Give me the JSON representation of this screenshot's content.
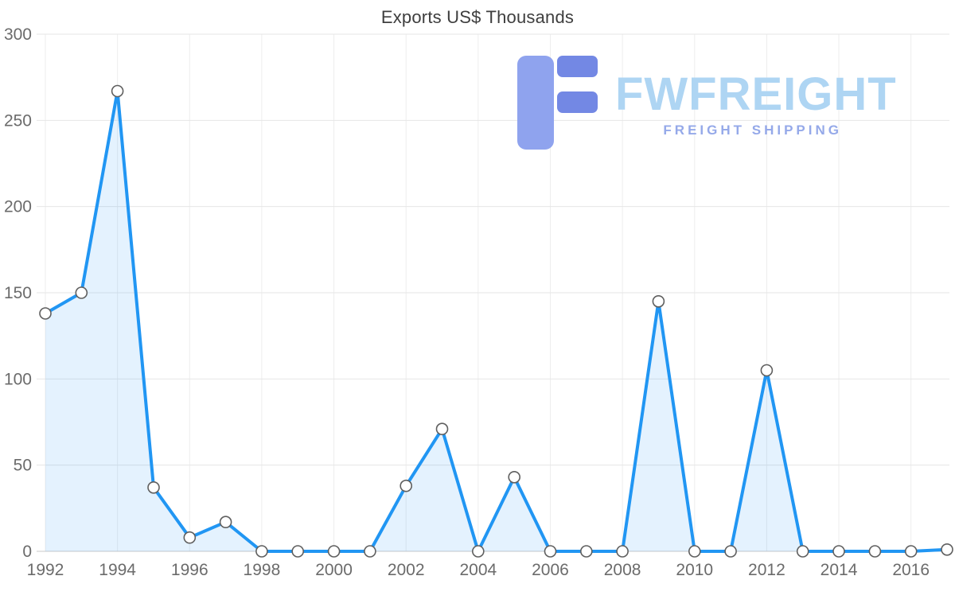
{
  "chart_data": {
    "type": "area",
    "title": "Exports US$ Thousands",
    "xlabel": "",
    "ylabel": "",
    "x": [
      1992,
      1993,
      1994,
      1995,
      1996,
      1997,
      1998,
      1999,
      2000,
      2001,
      2002,
      2003,
      2004,
      2005,
      2006,
      2007,
      2008,
      2009,
      2010,
      2011,
      2012,
      2013,
      2014,
      2015,
      2016,
      2017
    ],
    "values": [
      138,
      150,
      267,
      37,
      8,
      17,
      0,
      0,
      0,
      0,
      38,
      71,
      0,
      43,
      0,
      0,
      0,
      145,
      0,
      0,
      105,
      0,
      0,
      0,
      0,
      1
    ],
    "xticks": [
      1992,
      1994,
      1996,
      1998,
      2000,
      2002,
      2004,
      2006,
      2008,
      2010,
      2012,
      2014,
      2016
    ],
    "yticks": [
      0,
      50,
      100,
      150,
      200,
      250,
      300
    ],
    "ylim": [
      0,
      300
    ],
    "grid": true,
    "legend": "none",
    "line_color": "#2196f3",
    "fill_color": "#2196f3",
    "fill_opacity": 0.12,
    "marker_fill": "#ffffff",
    "marker_stroke": "#5f5f5f",
    "grid_color_h": "#e6e6e6",
    "grid_color_v": "#ededed",
    "axis_color": "#c9c9c9"
  },
  "watermark": {
    "brand": "FWFREIGHT",
    "tagline": "FREIGHT SHIPPING",
    "brand_color": "#aed5f3",
    "tagline_color": "#95a9e9",
    "icon_color_light": "#8fa3ee",
    "icon_color_dark": "#7388e4",
    "icon_name": "fwfreight-logo-icon"
  }
}
